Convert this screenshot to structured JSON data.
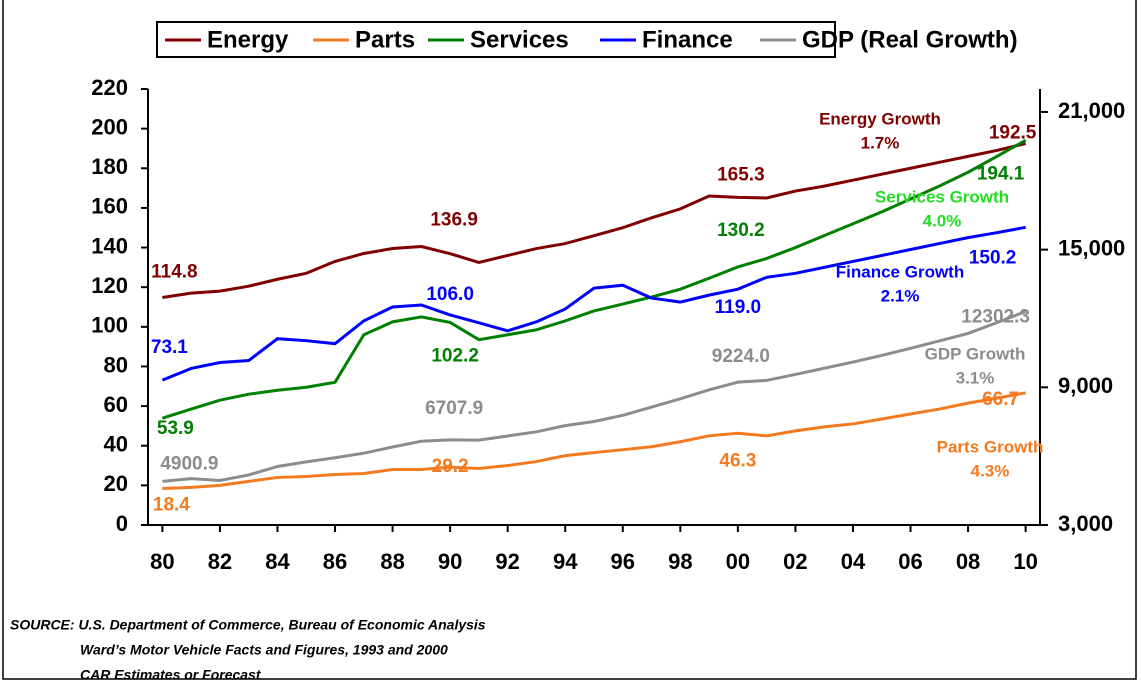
{
  "chart_data": {
    "type": "line",
    "x": [
      1980,
      1981,
      1982,
      1983,
      1984,
      1985,
      1986,
      1987,
      1988,
      1989,
      1990,
      1991,
      1992,
      1993,
      1994,
      1995,
      1996,
      1997,
      1998,
      1999,
      2000,
      2001,
      2002,
      2003,
      2004,
      2005,
      2006,
      2007,
      2008,
      2009,
      2010
    ],
    "xlim": [
      1979.5,
      2010.5
    ],
    "xticks": [
      {
        "value": 1980,
        "label": "80"
      },
      {
        "value": 1982,
        "label": "82"
      },
      {
        "value": 1984,
        "label": "84"
      },
      {
        "value": 1986,
        "label": "86"
      },
      {
        "value": 1988,
        "label": "88"
      },
      {
        "value": 1990,
        "label": "90"
      },
      {
        "value": 1992,
        "label": "92"
      },
      {
        "value": 1994,
        "label": "94"
      },
      {
        "value": 1996,
        "label": "96"
      },
      {
        "value": 1998,
        "label": "98"
      },
      {
        "value": 2000,
        "label": "00"
      },
      {
        "value": 2002,
        "label": "02"
      },
      {
        "value": 2004,
        "label": "04"
      },
      {
        "value": 2006,
        "label": "06"
      },
      {
        "value": 2008,
        "label": "08"
      },
      {
        "value": 2010,
        "label": "10"
      }
    ],
    "ylim": [
      0,
      220
    ],
    "yticks": [
      0,
      20,
      40,
      60,
      80,
      100,
      120,
      140,
      160,
      180,
      200,
      220
    ],
    "y2lim": [
      3000,
      22000
    ],
    "y2ticks": [
      {
        "value": 3000,
        "label": "3,000"
      },
      {
        "value": 9000,
        "label": "9,000"
      },
      {
        "value": 15000,
        "label": "15,000"
      },
      {
        "value": 21000,
        "label": "21,000"
      }
    ],
    "series": [
      {
        "name": "Energy",
        "color": "#800000",
        "values": [
          114.8,
          117,
          118,
          120.5,
          124,
          127,
          133,
          137,
          139.5,
          140.5,
          136.9,
          132.5,
          136,
          139.5,
          142,
          146,
          150,
          155,
          159.5,
          166,
          165.3,
          165,
          168.5,
          171,
          174,
          177,
          180,
          183,
          186,
          189,
          192.5
        ],
        "value_labels": [
          "114.8",
          null,
          null,
          null,
          null,
          null,
          null,
          null,
          null,
          null,
          "136.9",
          null,
          null,
          null,
          null,
          null,
          null,
          null,
          null,
          null,
          "165.3",
          null,
          null,
          null,
          null,
          null,
          null,
          null,
          null,
          null,
          "192.5"
        ],
        "annotation": {
          "text": "Energy Growth",
          "rate": "1.7%",
          "color": "#800000"
        }
      },
      {
        "name": "Parts",
        "color": "#f47a20",
        "values": [
          18.4,
          19,
          20,
          22,
          24,
          24.5,
          25.5,
          26,
          28,
          28,
          29.2,
          28.5,
          30,
          32,
          35,
          36.5,
          38,
          39.5,
          42,
          45,
          46.3,
          45,
          47.5,
          49.5,
          51,
          53.5,
          56,
          58.5,
          61.5,
          64,
          66.7
        ],
        "value_labels": [
          "18.4",
          null,
          null,
          null,
          null,
          null,
          null,
          null,
          null,
          null,
          "29.2",
          null,
          null,
          null,
          null,
          null,
          null,
          null,
          null,
          null,
          "46.3",
          null,
          null,
          null,
          null,
          null,
          null,
          null,
          null,
          null,
          "66.7"
        ],
        "annotation": {
          "text": "Parts Growth",
          "rate": "4.3%",
          "color": "#f47a20"
        }
      },
      {
        "name": "Services",
        "color": "#008000",
        "values": [
          53.9,
          58.5,
          63,
          66,
          68,
          69.5,
          72,
          96,
          102.5,
          105,
          102.2,
          93.5,
          96,
          98.5,
          103,
          108,
          111.5,
          115,
          119,
          124.5,
          130.2,
          134.5,
          140,
          146,
          152,
          158,
          164.5,
          171,
          178,
          186,
          194.1
        ],
        "value_labels": [
          "53.9",
          null,
          null,
          null,
          null,
          null,
          null,
          null,
          null,
          null,
          "102.2",
          null,
          null,
          null,
          null,
          null,
          null,
          null,
          null,
          null,
          "130.2",
          null,
          null,
          null,
          null,
          null,
          null,
          null,
          null,
          null,
          "194.1"
        ],
        "annotation": {
          "text": "Services Growth",
          "rate": "4.0%",
          "color": "#22dd22"
        }
      },
      {
        "name": "Finance",
        "color": "#0000ff",
        "values": [
          73.1,
          79,
          82,
          83,
          94,
          93,
          91.5,
          103,
          110,
          111,
          106,
          102,
          98,
          102.5,
          109,
          119.5,
          121,
          114.5,
          112.5,
          116,
          119,
          125,
          127,
          130,
          133,
          136,
          139,
          142,
          145,
          147.5,
          150.2
        ],
        "value_labels": [
          "73.1",
          null,
          null,
          null,
          null,
          null,
          null,
          null,
          null,
          null,
          "106.0",
          null,
          null,
          null,
          null,
          null,
          null,
          null,
          null,
          null,
          "119.0",
          null,
          null,
          null,
          null,
          null,
          null,
          null,
          null,
          null,
          "150.2"
        ],
        "annotation": {
          "text": "Finance Growth",
          "rate": "2.1%",
          "color": "#0000ff"
        }
      },
      {
        "name": "GDP (Real Growth)",
        "color": "#8c8c8c",
        "axis": "y2",
        "values": [
          4900.9,
          5020,
          4940,
          5180,
          5550,
          5750,
          5930,
          6130,
          6400,
          6650,
          6707.9,
          6700,
          6880,
          7060,
          7330,
          7510,
          7780,
          8140,
          8500,
          8890,
          9224,
          9300,
          9560,
          9830,
          10100,
          10390,
          10700,
          11020,
          11350,
          11820,
          12302.3
        ],
        "value_labels": [
          "4900.9",
          null,
          null,
          null,
          null,
          null,
          null,
          null,
          null,
          null,
          "6707.9",
          null,
          null,
          null,
          null,
          null,
          null,
          null,
          null,
          null,
          "9224.0",
          null,
          null,
          null,
          null,
          null,
          null,
          null,
          null,
          null,
          "12302.3"
        ],
        "annotation": {
          "text": "GDP Growth",
          "rate": "3.1%",
          "color": "#8c8c8c"
        }
      }
    ],
    "source": [
      "SOURCE:  U.S. Department of Commerce, Bureau of Economic Analysis",
      "Ward’s Motor Vehicle Facts and Figures, 1993 and 2000",
      "CAR Estimates or Forecast"
    ]
  }
}
